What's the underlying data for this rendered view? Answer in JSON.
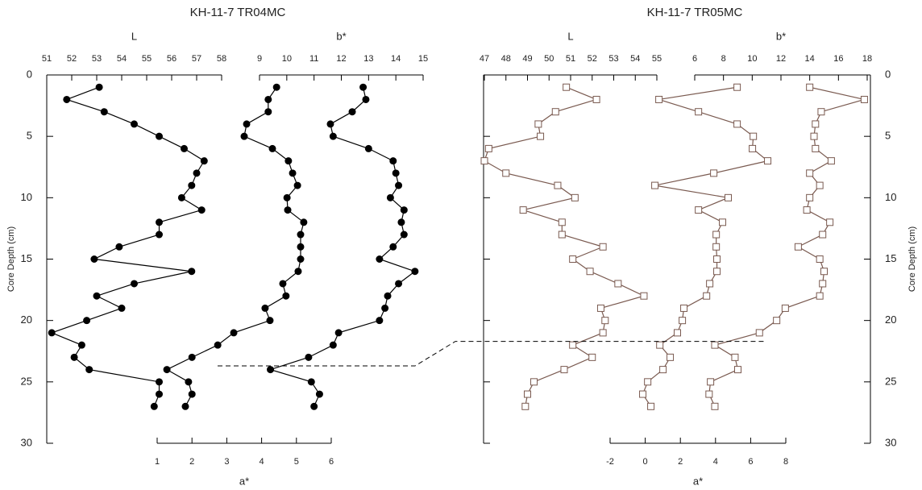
{
  "chart_data": [
    {
      "type": "line",
      "title": "KH-11-7 TR04MC",
      "y_label": "Core Depth (cm)",
      "y_label_side": "left",
      "ylim": [
        0,
        30
      ],
      "yticks": [
        0,
        5,
        10,
        15,
        20,
        25,
        30
      ],
      "y_inverted": true,
      "marker": "circle",
      "marker_fill": "#000000",
      "color": "#000000",
      "tie_depth": 23.7,
      "depth": [
        1,
        2,
        3,
        4,
        5,
        6,
        7,
        8,
        9,
        10,
        11,
        12,
        13,
        14,
        15,
        16,
        17,
        18,
        19,
        20,
        21,
        22,
        23,
        24,
        25,
        26,
        27
      ],
      "series": [
        {
          "name": "L",
          "axis": "top",
          "xlim": [
            51,
            58
          ],
          "xticks": [
            51,
            52,
            53,
            54,
            55,
            56,
            57,
            58
          ],
          "values": [
            53.1,
            51.8,
            53.3,
            54.5,
            55.5,
            56.5,
            57.3,
            57.0,
            56.8,
            56.4,
            57.2,
            55.5,
            55.5,
            53.9,
            52.9,
            56.8,
            54.5,
            53.0,
            54.0,
            52.6,
            51.2,
            52.4,
            52.1,
            52.7,
            55.5,
            55.5,
            55.3
          ]
        },
        {
          "name": "a*",
          "axis": "bottom",
          "xlim": [
            1,
            6
          ],
          "xticks": [
            1,
            2,
            3,
            4,
            5,
            6
          ],
          "values": [
            4.43,
            4.19,
            4.19,
            3.57,
            3.5,
            4.31,
            4.77,
            4.89,
            5.03,
            4.73,
            4.75,
            5.21,
            5.12,
            5.12,
            5.12,
            5.05,
            4.61,
            4.7,
            4.1,
            4.24,
            3.2,
            2.74,
            2.0,
            1.28,
            1.9,
            2.0,
            1.81
          ]
        },
        {
          "name": "b*",
          "axis": "top",
          "xlim": [
            9,
            15
          ],
          "xticks": [
            9,
            10,
            11,
            12,
            13,
            14,
            15
          ],
          "values": [
            12.8,
            12.9,
            12.4,
            11.6,
            11.7,
            13.0,
            13.9,
            14.0,
            14.1,
            13.8,
            14.3,
            14.2,
            14.3,
            13.9,
            13.4,
            14.7,
            14.1,
            13.7,
            13.6,
            13.4,
            11.9,
            11.7,
            10.8,
            9.4,
            10.9,
            11.2,
            11.0
          ]
        }
      ]
    },
    {
      "type": "line",
      "title": "KH-11-7 TR05MC",
      "y_label": "Core Depth (cm)",
      "y_label_side": "right",
      "ylim": [
        0,
        30
      ],
      "yticks": [
        0,
        5,
        10,
        15,
        20,
        25,
        30
      ],
      "y_inverted": true,
      "marker": "square",
      "marker_fill": "#ffffff",
      "color": "#7a5a50",
      "tie_depth": 21.7,
      "depth": [
        1,
        2,
        3,
        4,
        5,
        6,
        7,
        8,
        9,
        10,
        11,
        12,
        13,
        14,
        15,
        16,
        17,
        18,
        19,
        20,
        21,
        22,
        23,
        24,
        25,
        26,
        27
      ],
      "series": [
        {
          "name": "L",
          "axis": "top",
          "xlim": [
            47,
            55
          ],
          "xticks": [
            47,
            48,
            49,
            50,
            51,
            52,
            53,
            54,
            55
          ],
          "values": [
            50.8,
            52.2,
            50.3,
            49.5,
            49.6,
            47.2,
            47.0,
            48.0,
            50.4,
            51.2,
            48.8,
            50.6,
            50.6,
            52.5,
            51.1,
            51.9,
            53.2,
            54.4,
            52.4,
            52.6,
            52.5,
            51.1,
            52.0,
            50.7,
            49.3,
            49.0,
            48.9
          ]
        },
        {
          "name": "a*",
          "axis": "bottom",
          "xlim": [
            -2,
            8
          ],
          "xticks": [
            -2,
            0,
            2,
            4,
            6,
            8
          ],
          "values": [
            5.23,
            0.78,
            3.03,
            5.23,
            6.15,
            6.1,
            6.97,
            3.9,
            0.55,
            4.72,
            3.03,
            4.4,
            4.04,
            4.04,
            4.08,
            4.08,
            3.67,
            3.49,
            2.2,
            2.11,
            1.83,
            0.83,
            1.42,
            1.01,
            0.14,
            -0.14,
            0.32
          ]
        },
        {
          "name": "b*",
          "axis": "top",
          "xlim": [
            6,
            18
          ],
          "xticks": [
            6,
            8,
            10,
            12,
            14,
            16,
            18
          ],
          "values": [
            14.0,
            17.8,
            14.8,
            14.4,
            14.3,
            14.4,
            15.5,
            14.0,
            14.7,
            14.0,
            13.8,
            15.4,
            14.9,
            13.2,
            14.7,
            15.0,
            14.9,
            14.7,
            12.3,
            11.7,
            10.5,
            7.4,
            8.8,
            9.0,
            7.1,
            7.0,
            7.4
          ]
        }
      ]
    }
  ]
}
